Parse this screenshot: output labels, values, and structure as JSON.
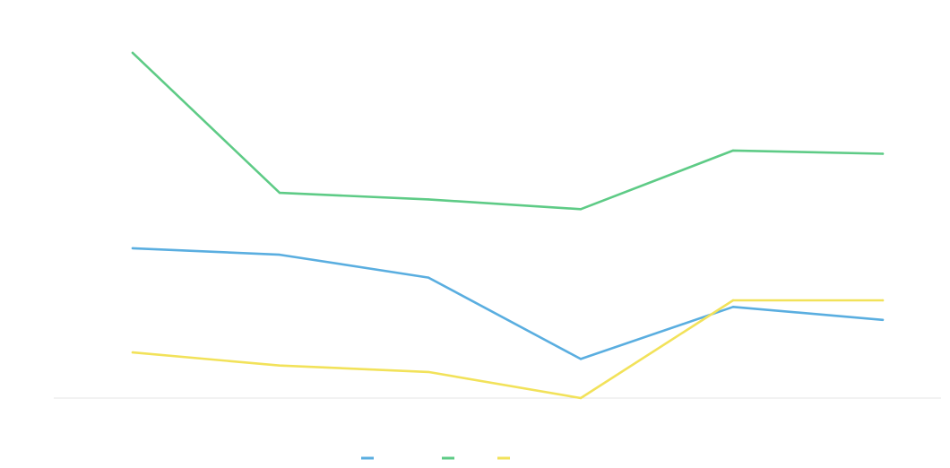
{
  "chart_data": {
    "type": "line",
    "title": "",
    "xlabel": "",
    "ylabel": "",
    "categories": [
      "",
      "",
      "",
      "",
      "",
      ""
    ],
    "ylim": [
      0,
      6
    ],
    "yticks": [
      "",
      "",
      "",
      "",
      "",
      "",
      ""
    ],
    "grid": false,
    "legend_position": "bottom",
    "series": [
      {
        "name": "",
        "color": "#5aaee0",
        "values": [
          2.3,
          2.2,
          1.85,
          0.6,
          1.4,
          1.2
        ]
      },
      {
        "name": "",
        "color": "#5ecb86",
        "values": [
          5.3,
          3.15,
          3.05,
          2.9,
          3.8,
          3.75
        ]
      },
      {
        "name": "",
        "color": "#f2e25a",
        "values": [
          0.7,
          0.5,
          0.4,
          0.0,
          1.5,
          1.5
        ]
      }
    ]
  }
}
